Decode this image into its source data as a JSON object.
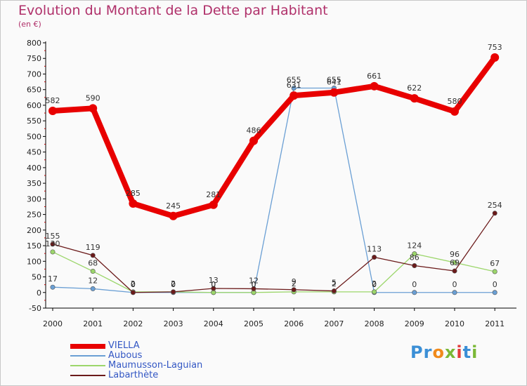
{
  "header": {
    "title": "Evolution du Montant de la Dette par Habitant",
    "subtitle": "(en €)"
  },
  "logo": {
    "text": "Proxiti",
    "letters": [
      {
        "ch": "P",
        "color": "#3b8fd6"
      },
      {
        "ch": "r",
        "color": "#3b8fd6"
      },
      {
        "ch": "o",
        "color": "#f08a1c"
      },
      {
        "ch": "x",
        "color": "#7ab836"
      },
      {
        "ch": "i",
        "color": "#e23a3a"
      },
      {
        "ch": "t",
        "color": "#3b8fd6"
      },
      {
        "ch": "i",
        "color": "#7ab836"
      }
    ]
  },
  "chart_data": {
    "type": "line",
    "title": "Evolution du Montant de la Dette par Habitant",
    "ylabel": "(en €)",
    "x": [
      "2000",
      "2001",
      "2002",
      "2003",
      "2004",
      "2005",
      "2006",
      "2007",
      "2008",
      "2009",
      "2010",
      "2011"
    ],
    "ylim": [
      -50,
      800
    ],
    "yticks": [
      "-50",
      "0",
      "50",
      "100",
      "150",
      "200",
      "250",
      "300",
      "350",
      "400",
      "450",
      "500",
      "550",
      "600",
      "650",
      "700",
      "750",
      "800"
    ],
    "grid": false,
    "legend_position": "bottom-left",
    "series": [
      {
        "name": "VIELLA",
        "color": "#e80000",
        "values": [
          582,
          590,
          285,
          245,
          281,
          486,
          631,
          641,
          661,
          622,
          580,
          753
        ],
        "labels": [
          "582",
          "590",
          "285",
          "245",
          "281",
          "486",
          "631",
          "641",
          "661",
          "622",
          "580",
          "753"
        ]
      },
      {
        "name": "Aubous",
        "color": "#6a9fd4",
        "values": [
          17,
          12,
          0,
          0,
          0,
          0,
          655,
          655,
          0,
          0,
          0,
          0
        ],
        "labels": [
          "17",
          "12",
          "0",
          "0",
          "0",
          "0",
          "655",
          "655",
          "0",
          "0",
          "0",
          "0"
        ]
      },
      {
        "name": "Maumusson-Laguian",
        "color": "#9cd66b",
        "values": [
          130,
          68,
          2,
          2,
          0,
          0,
          2,
          2,
          2,
          124,
          96,
          67
        ],
        "labels": [
          "130",
          "68",
          "2",
          "2",
          "0",
          "0",
          "2",
          "2",
          "2",
          "124",
          "96",
          "67"
        ]
      },
      {
        "name": "Labarthète",
        "color": "#6b1a1a",
        "values": [
          155,
          119,
          0,
          2,
          13,
          12,
          9,
          5,
          113,
          86,
          69,
          254
        ],
        "labels": [
          "155",
          "119",
          "0",
          "2",
          "13",
          "12",
          "9",
          "5",
          "113",
          "86",
          "69",
          "254"
        ]
      }
    ]
  }
}
